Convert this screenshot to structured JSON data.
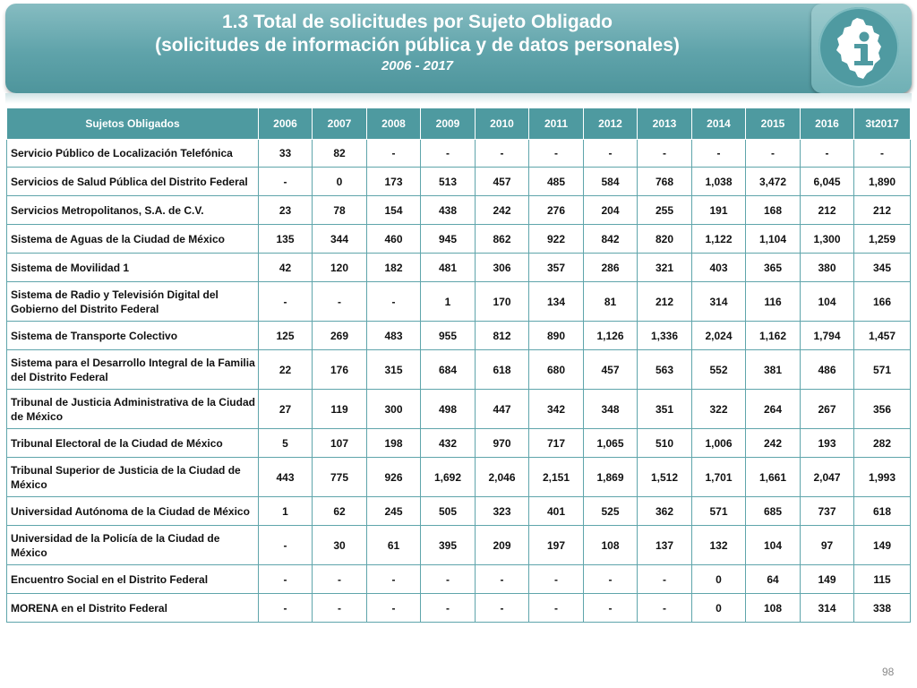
{
  "header": {
    "title_line1": "1.3 Total de solicitudes por Sujeto Obligado",
    "title_line2": "(solicitudes de información pública y de datos personales)",
    "period": "2006 - 2017"
  },
  "logo": {
    "icon": "cdmx-map-info-logo"
  },
  "table": {
    "headers": [
      "Sujetos Obligados",
      "2006",
      "2007",
      "2008",
      "2009",
      "2010",
      "2011",
      "2012",
      "2013",
      "2014",
      "2015",
      "2016",
      "3t2017"
    ],
    "rows": [
      {
        "name": "Servicio Público de Localización Telefónica",
        "values": [
          "33",
          "82",
          "-",
          "-",
          "-",
          "-",
          "-",
          "-",
          "-",
          "-",
          "-",
          "-"
        ]
      },
      {
        "name": "Servicios de Salud Pública del Distrito Federal",
        "values": [
          "-",
          "0",
          "173",
          "513",
          "457",
          "485",
          "584",
          "768",
          "1,038",
          "3,472",
          "6,045",
          "1,890"
        ]
      },
      {
        "name": "Servicios Metropolitanos, S.A. de C.V.",
        "values": [
          "23",
          "78",
          "154",
          "438",
          "242",
          "276",
          "204",
          "255",
          "191",
          "168",
          "212",
          "212"
        ]
      },
      {
        "name": "Sistema de Aguas de la Ciudad de México",
        "values": [
          "135",
          "344",
          "460",
          "945",
          "862",
          "922",
          "842",
          "820",
          "1,122",
          "1,104",
          "1,300",
          "1,259"
        ]
      },
      {
        "name": "Sistema de Movilidad 1",
        "values": [
          "42",
          "120",
          "182",
          "481",
          "306",
          "357",
          "286",
          "321",
          "403",
          "365",
          "380",
          "345"
        ]
      },
      {
        "name": "Sistema de Radio y Televisión Digital del Gobierno del Distrito Federal",
        "values": [
          "-",
          "-",
          "-",
          "1",
          "170",
          "134",
          "81",
          "212",
          "314",
          "116",
          "104",
          "166"
        ]
      },
      {
        "name": "Sistema de Transporte Colectivo",
        "values": [
          "125",
          "269",
          "483",
          "955",
          "812",
          "890",
          "1,126",
          "1,336",
          "2,024",
          "1,162",
          "1,794",
          "1,457"
        ]
      },
      {
        "name": "Sistema para el Desarrollo Integral de la Familia del Distrito Federal",
        "values": [
          "22",
          "176",
          "315",
          "684",
          "618",
          "680",
          "457",
          "563",
          "552",
          "381",
          "486",
          "571"
        ]
      },
      {
        "name": "Tribunal de Justicia Administrativa de la Ciudad de México",
        "values": [
          "27",
          "119",
          "300",
          "498",
          "447",
          "342",
          "348",
          "351",
          "322",
          "264",
          "267",
          "356"
        ]
      },
      {
        "name": "Tribunal Electoral de la Ciudad de México",
        "values": [
          "5",
          "107",
          "198",
          "432",
          "970",
          "717",
          "1,065",
          "510",
          "1,006",
          "242",
          "193",
          "282"
        ]
      },
      {
        "name": "Tribunal Superior de Justicia de la Ciudad de México",
        "values": [
          "443",
          "775",
          "926",
          "1,692",
          "2,046",
          "2,151",
          "1,869",
          "1,512",
          "1,701",
          "1,661",
          "2,047",
          "1,993"
        ]
      },
      {
        "name": "Universidad Autónoma de la Ciudad de México",
        "values": [
          "1",
          "62",
          "245",
          "505",
          "323",
          "401",
          "525",
          "362",
          "571",
          "685",
          "737",
          "618"
        ]
      },
      {
        "name": "Universidad de la Policía de la Ciudad de México",
        "values": [
          "-",
          "30",
          "61",
          "395",
          "209",
          "197",
          "108",
          "137",
          "132",
          "104",
          "97",
          "149"
        ]
      },
      {
        "name": "Encuentro Social en el Distrito Federal",
        "values": [
          "-",
          "-",
          "-",
          "-",
          "-",
          "-",
          "-",
          "-",
          "0",
          "64",
          "149",
          "115"
        ]
      },
      {
        "name": "MORENA en el Distrito Federal",
        "values": [
          "-",
          "-",
          "-",
          "-",
          "-",
          "-",
          "-",
          "-",
          "0",
          "108",
          "314",
          "338"
        ]
      }
    ]
  },
  "footer": {
    "page_number": "98"
  },
  "colors": {
    "header_teal": "#5fa3aa",
    "table_header": "#4e9aa0",
    "border": "#5fa5ab"
  }
}
